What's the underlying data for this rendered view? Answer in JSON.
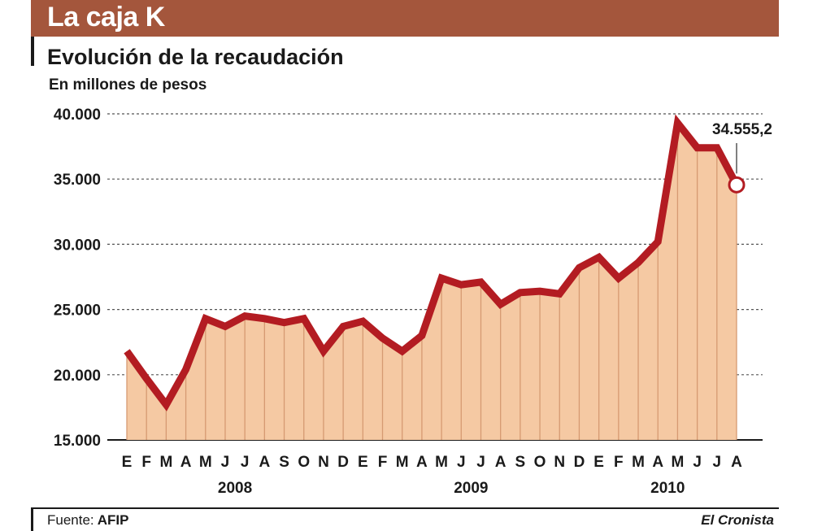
{
  "header": {
    "title": "La caja K"
  },
  "footer": {
    "source_label": "Fuente:",
    "source_value": "AFIP",
    "publisher": "El Cronista"
  },
  "colors": {
    "header": "#a4563c",
    "line": "#b31c22",
    "fill": "#f5c9a3",
    "grid": "#555555"
  },
  "chart_data": {
    "type": "area",
    "title": "Evolución de la recaudación",
    "ylabel": "En millones de pesos",
    "xlabel": "",
    "ylim": [
      15000,
      40000
    ],
    "yticks": [
      "15.000",
      "20.000",
      "25.000",
      "30.000",
      "35.000",
      "40.000"
    ],
    "ytick_values": [
      15000,
      20000,
      25000,
      30000,
      35000,
      40000
    ],
    "categories": [
      "E",
      "F",
      "M",
      "A",
      "M",
      "J",
      "J",
      "A",
      "S",
      "O",
      "N",
      "D",
      "E",
      "F",
      "M",
      "A",
      "M",
      "J",
      "J",
      "A",
      "S",
      "O",
      "N",
      "D",
      "E",
      "F",
      "M",
      "A",
      "M",
      "J",
      "J",
      "A"
    ],
    "year_labels": [
      {
        "label": "2008",
        "start": 0,
        "end": 11
      },
      {
        "label": "2009",
        "start": 12,
        "end": 23
      },
      {
        "label": "2010",
        "start": 24,
        "end": 31
      }
    ],
    "series": [
      {
        "values": [
          21800,
          19700,
          17700,
          20400,
          24300,
          23700,
          24500,
          24300,
          24000,
          24300,
          21800,
          23700,
          24100,
          22800,
          21800,
          23000,
          27400,
          26900,
          27100,
          25400,
          26300,
          26400,
          26200,
          28200,
          29000,
          27400,
          28600,
          30200,
          39300,
          37400,
          37400,
          34555.2
        ]
      }
    ],
    "annotation": {
      "text": "34.555,2",
      "index": 31
    },
    "grid": "horizontal dashed",
    "legend": "none"
  }
}
